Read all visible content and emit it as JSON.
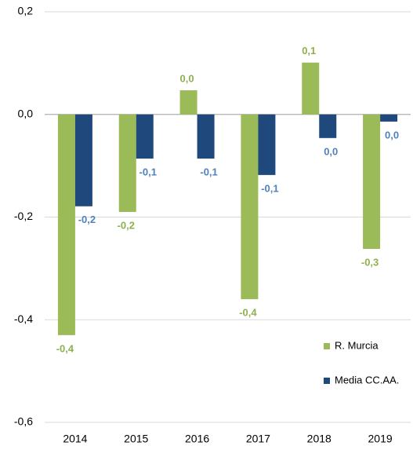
{
  "chart_data": {
    "type": "bar",
    "categories": [
      "2014",
      "2015",
      "2016",
      "2017",
      "2018",
      "2019"
    ],
    "series": [
      {
        "name": "R. Murcia",
        "color": "#9bbb59",
        "label_color": "#8fb04f",
        "values": [
          -0.43,
          -0.19,
          0.047,
          -0.36,
          0.101,
          -0.262
        ],
        "value_labels": [
          "-0,4",
          "-0,2",
          "0,0",
          "-0,4",
          "0,1",
          "-0,3"
        ]
      },
      {
        "name": "Media CC.AA.",
        "color": "#1f497d",
        "label_color": "#4f81bd",
        "values": [
          -0.179,
          -0.086,
          -0.086,
          -0.118,
          -0.046,
          -0.014
        ],
        "value_labels": [
          "-0,2",
          "-0,1",
          "-0,1",
          "-0,1",
          "0,0",
          "0,0"
        ]
      }
    ],
    "ylim": [
      -0.6,
      0.2
    ],
    "yticks": [
      {
        "value": -0.6,
        "label": "-0,6"
      },
      {
        "value": -0.4,
        "label": "-0,4"
      },
      {
        "value": -0.2,
        "label": "-0,2"
      },
      {
        "value": 0,
        "label": "0,0"
      },
      {
        "value": 0.2,
        "label": "0,2"
      }
    ],
    "grid": true,
    "legend": "lower right"
  }
}
